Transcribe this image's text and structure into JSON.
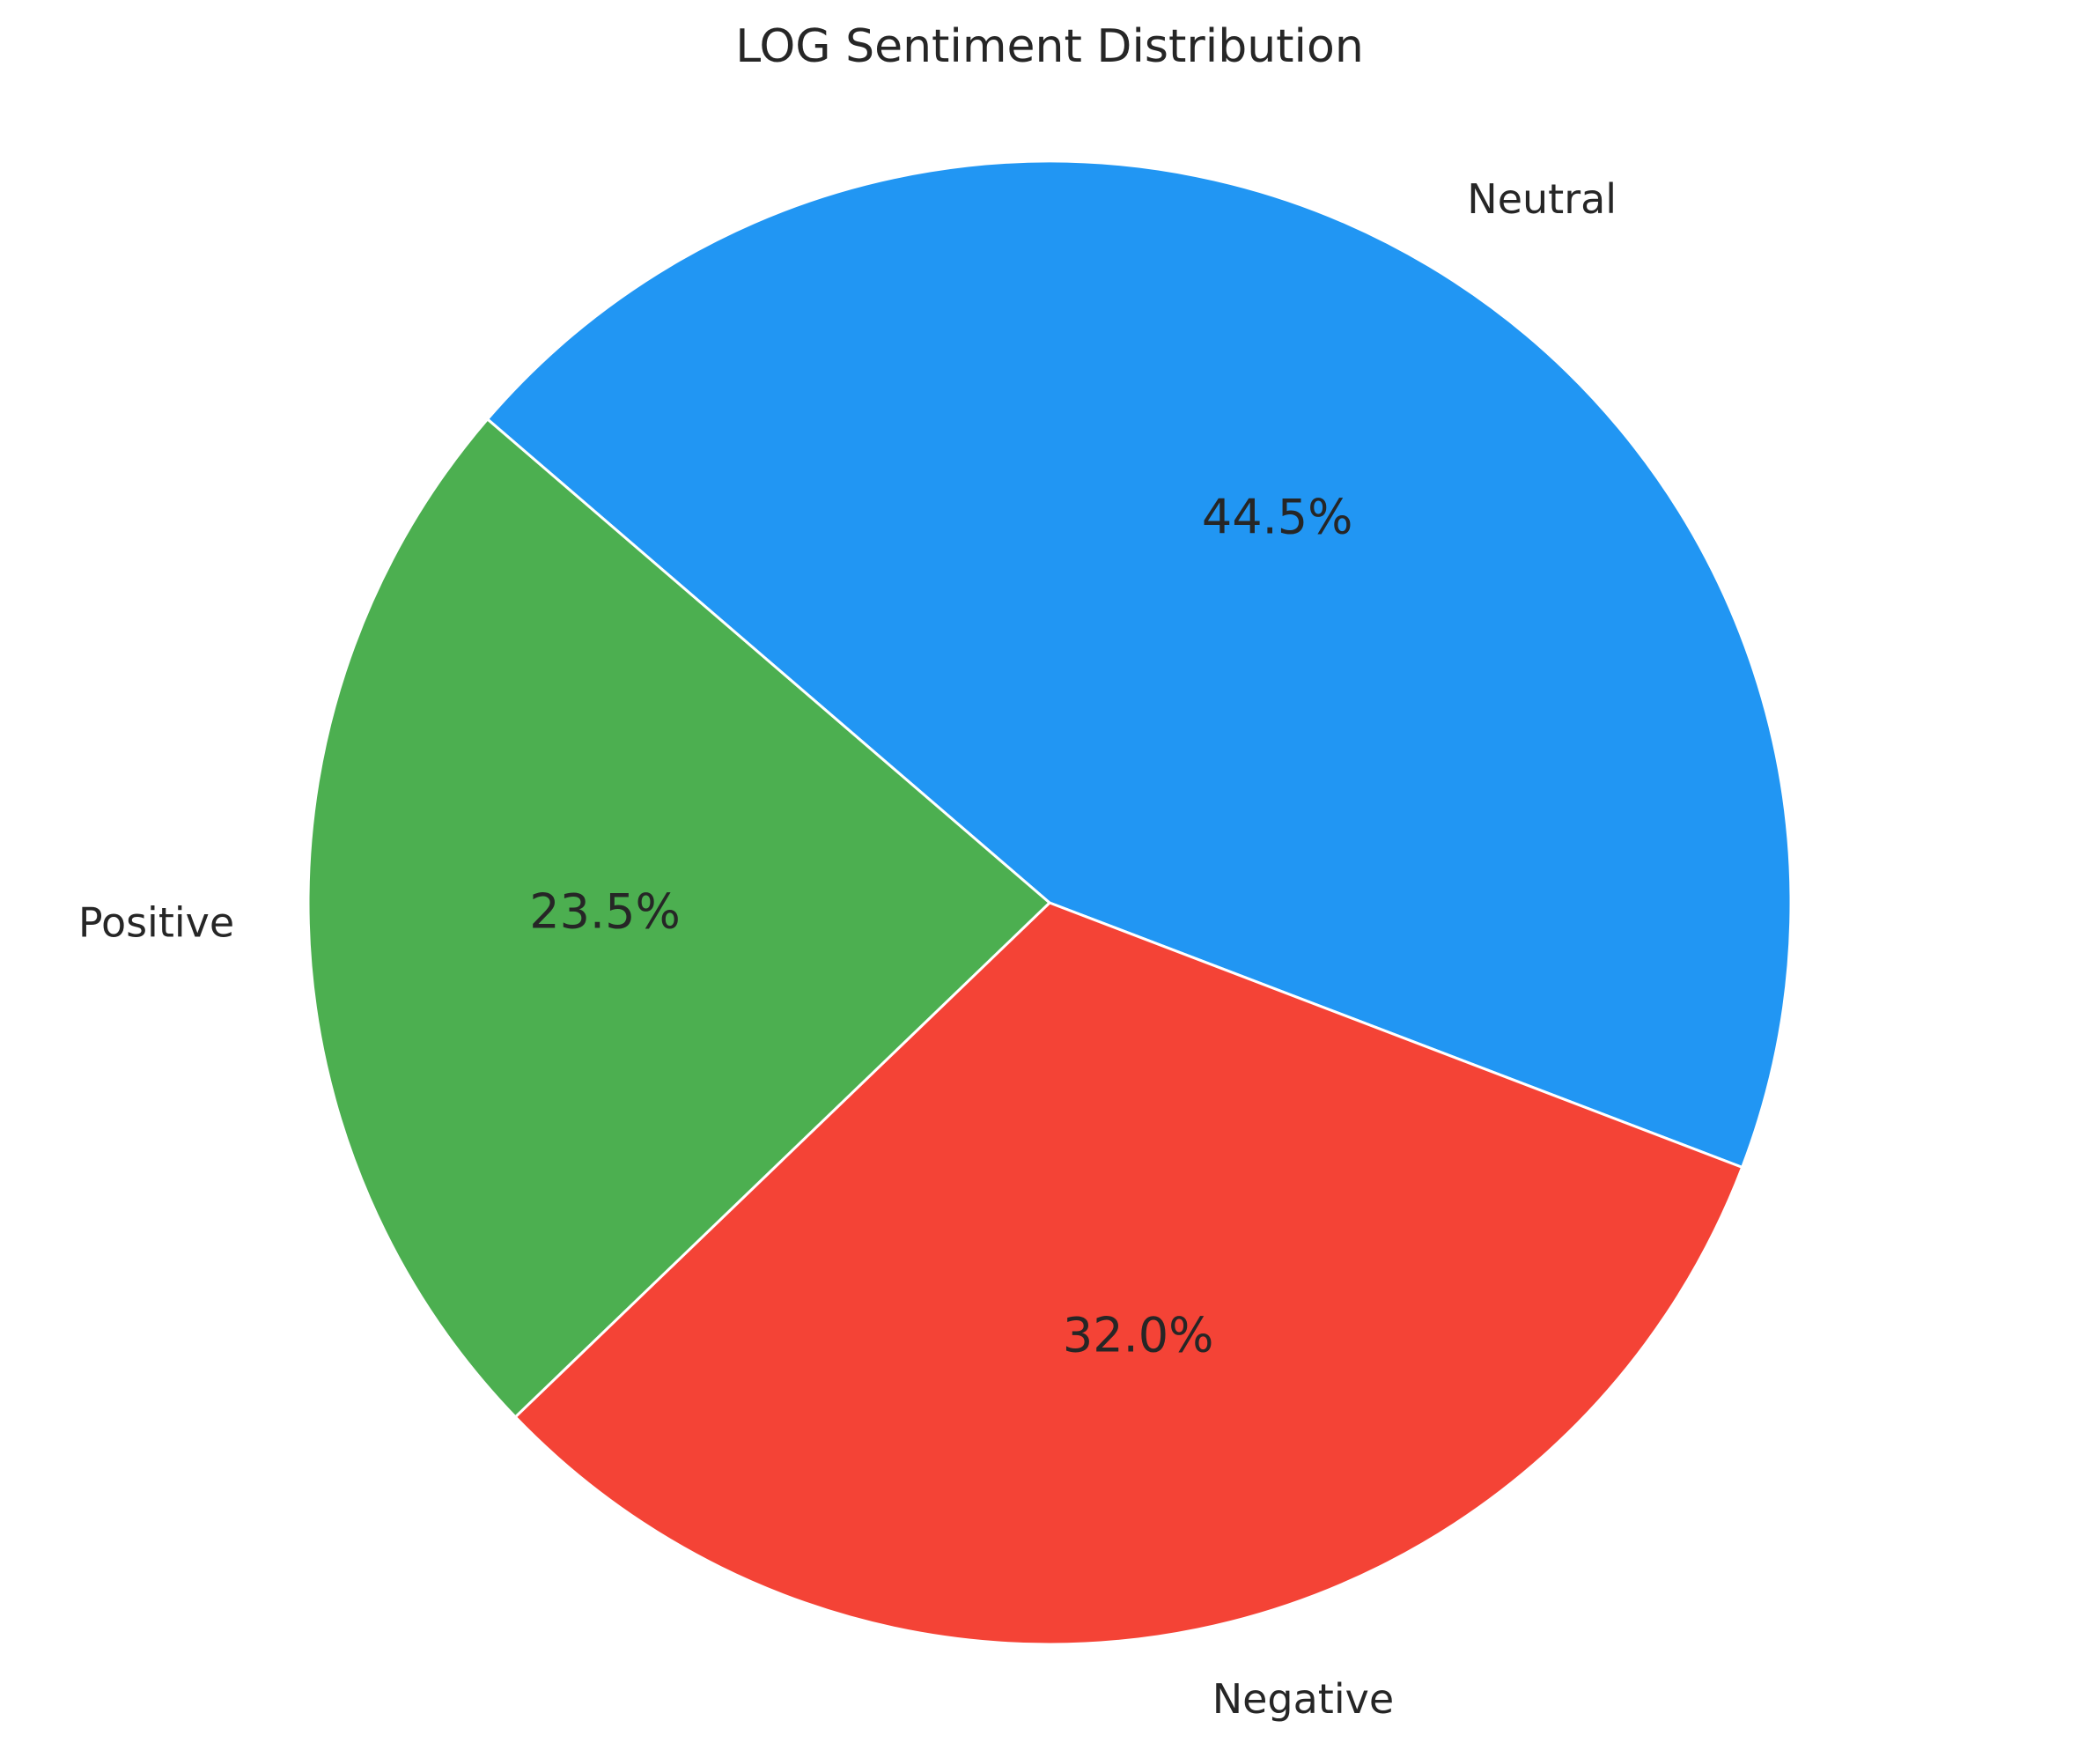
{
  "chart_data": {
    "type": "pie",
    "title": "LOG Sentiment Distribution",
    "slices": [
      {
        "label": "Neutral",
        "value": 44.5,
        "pct_label": "44.5%",
        "color": "#2196f3"
      },
      {
        "label": "Negative",
        "value": 32.0,
        "pct_label": "32.0%",
        "color": "#f44336"
      },
      {
        "label": "Positive",
        "value": 23.5,
        "pct_label": "23.5%",
        "color": "#4caf50"
      }
    ],
    "edge_color": "#ffffff"
  }
}
